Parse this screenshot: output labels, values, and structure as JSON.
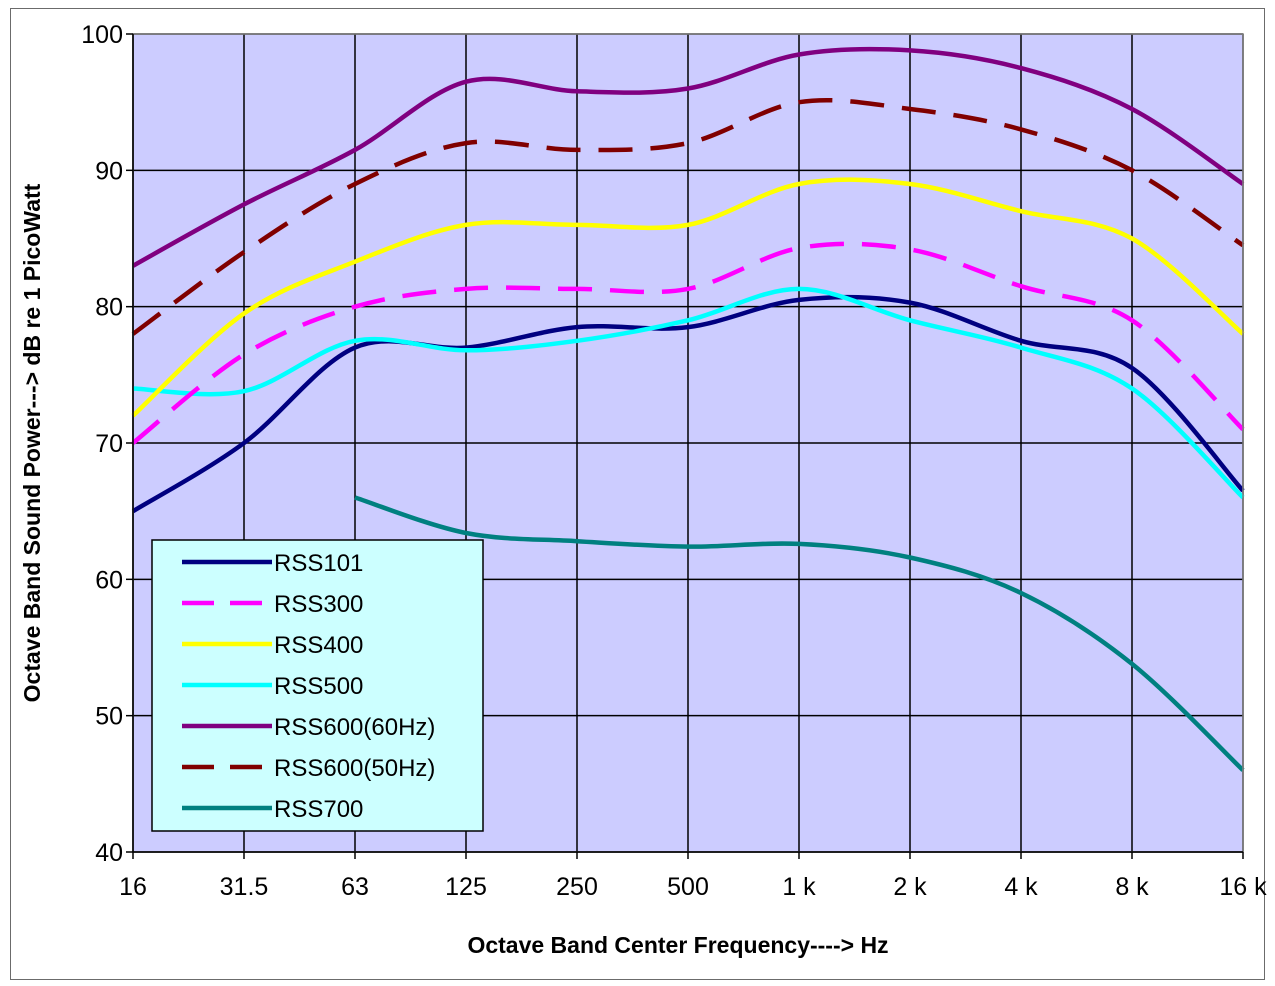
{
  "chart_data": {
    "type": "line",
    "title": "",
    "xlabel": "Octave Band Center Frequency----> Hz",
    "ylabel": "Octave Band Sound Power---> dB re 1 PicoWatt",
    "categories": [
      "16",
      "31.5",
      "63",
      "125",
      "250",
      "500",
      "1 k",
      "2 k",
      "4 k",
      "8 k",
      "16 k"
    ],
    "ylim": [
      40,
      100
    ],
    "yticks": [
      40,
      50,
      60,
      70,
      80,
      90,
      100
    ],
    "grid": true,
    "legend_position": "bottom-left",
    "plot_background": "#ccccff",
    "series": [
      {
        "name": "RSS101",
        "color": "#000080",
        "dashed": false,
        "values": [
          65,
          70,
          77,
          77,
          78.5,
          78.5,
          80.5,
          80.3,
          77.5,
          75.5,
          66.5
        ]
      },
      {
        "name": "RSS300",
        "color": "#ff00ff",
        "dashed": true,
        "values": [
          70,
          76.5,
          80,
          81.3,
          81.3,
          81.3,
          84.3,
          84.2,
          81.5,
          79,
          71
        ]
      },
      {
        "name": "RSS400",
        "color": "#ffff00",
        "dashed": false,
        "values": [
          72,
          79.5,
          83.3,
          86,
          86,
          86,
          89,
          89,
          87,
          85,
          78
        ]
      },
      {
        "name": "RSS500",
        "color": "#00ffff",
        "dashed": false,
        "values": [
          74,
          73.8,
          77.5,
          76.8,
          77.5,
          79,
          81.3,
          79,
          77,
          74,
          66
        ]
      },
      {
        "name": "RSS600(60Hz)",
        "color": "#800080",
        "dashed": false,
        "values": [
          83,
          87.5,
          91.5,
          96.5,
          95.8,
          96,
          98.5,
          98.8,
          97.5,
          94.5,
          89
        ]
      },
      {
        "name": "RSS600(50Hz)",
        "color": "#800000",
        "dashed": true,
        "values": [
          78,
          84,
          89,
          92,
          91.5,
          92,
          95,
          94.5,
          93,
          90,
          84.5
        ]
      },
      {
        "name": "RSS700",
        "color": "#008080",
        "dashed": false,
        "values": [
          null,
          null,
          66,
          63.4,
          62.8,
          62.4,
          62.6,
          61.6,
          59,
          53.8,
          46
        ]
      }
    ]
  }
}
